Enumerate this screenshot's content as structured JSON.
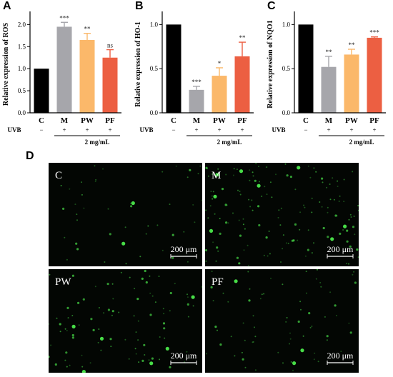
{
  "panel_labels": [
    "A",
    "B",
    "C",
    "D"
  ],
  "colors": {
    "C": "#000000",
    "M": "#a6a6ab",
    "PW": "#fbb86a",
    "PF": "#ec5f42",
    "fluor": "#4be84b",
    "micro_bg": "#030603"
  },
  "chart_data": [
    {
      "type": "bar",
      "panel": "A",
      "ylabel": "Relative expression of ROS",
      "ylim": [
        0,
        2.2
      ],
      "yticks": [
        "0.0",
        "0.5",
        "1.0",
        "1.5",
        "2.0"
      ],
      "ytick_values": [
        0,
        0.5,
        1.0,
        1.5,
        2.0
      ],
      "categories": [
        "C",
        "M",
        "PW",
        "PF"
      ],
      "values": [
        1.0,
        1.95,
        1.65,
        1.25
      ],
      "errors": [
        0,
        0.1,
        0.15,
        0.18
      ],
      "significance": [
        "",
        "***",
        "**",
        "ns"
      ],
      "uvb_label": "UVB",
      "uvb": [
        "−",
        "+",
        "+",
        "+"
      ],
      "dose_label": "2 mg/mL"
    },
    {
      "type": "bar",
      "panel": "B",
      "ylabel": "Relative expression of HO-1",
      "ylim": [
        0,
        1.1
      ],
      "yticks": [
        "0.0",
        "0.5",
        "1.0"
      ],
      "ytick_values": [
        0,
        0.5,
        1.0
      ],
      "categories": [
        "C",
        "M",
        "PW",
        "PF"
      ],
      "values": [
        1.0,
        0.26,
        0.42,
        0.64
      ],
      "errors": [
        0,
        0.04,
        0.09,
        0.16
      ],
      "significance": [
        "",
        "***",
        "*",
        "**"
      ],
      "uvb_label": "UVB",
      "uvb": [
        "−",
        "+",
        "+",
        "+"
      ],
      "dose_label": "2 mg/mL"
    },
    {
      "type": "bar",
      "panel": "C",
      "ylabel": "Relative expression of NQO1",
      "ylim": [
        0,
        1.1
      ],
      "yticks": [
        "0.0",
        "0.5",
        "1.0"
      ],
      "ytick_values": [
        0,
        0.5,
        1.0
      ],
      "categories": [
        "C",
        "M",
        "PW",
        "PF"
      ],
      "values": [
        1.0,
        0.52,
        0.66,
        0.85
      ],
      "errors": [
        0,
        0.12,
        0.06,
        0.01
      ],
      "significance": [
        "",
        "**",
        "**",
        "***"
      ],
      "uvb_label": "UVB",
      "uvb": [
        "−",
        "+",
        "+",
        "+"
      ],
      "dose_label": "2 mg/mL"
    }
  ],
  "micrographs": [
    {
      "label": "C",
      "scale_bar": "200 μm",
      "density": "low"
    },
    {
      "label": "M",
      "scale_bar": "200 μm",
      "density": "high"
    },
    {
      "label": "PW",
      "scale_bar": "200 μm",
      "density": "medium"
    },
    {
      "label": "PF",
      "scale_bar": "200 μm",
      "density": "medium-low"
    }
  ]
}
